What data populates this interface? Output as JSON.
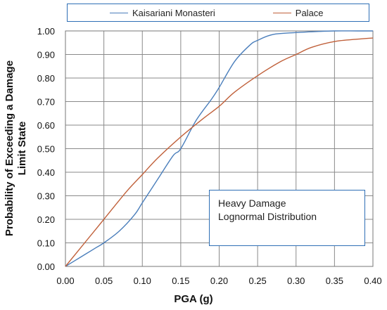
{
  "chart_data": {
    "type": "line",
    "title": "",
    "xlabel": "PGA (g)",
    "ylabel": "Probability of Exceeding a Damage Limit State",
    "ylabel_lines": [
      "Probability of Exceeding a Damage",
      "Limit State"
    ],
    "xlim": [
      0,
      0.4
    ],
    "ylim": [
      0,
      1.0
    ],
    "xticks": [
      "0.00",
      "0.05",
      "0.10",
      "0.15",
      "0.20",
      "0.25",
      "0.30",
      "0.35",
      "0.40"
    ],
    "yticks": [
      "0.00",
      "0.10",
      "0.20",
      "0.30",
      "0.40",
      "0.50",
      "0.60",
      "0.70",
      "0.80",
      "0.90",
      "1.00"
    ],
    "grid": true,
    "legend_position": "top",
    "annotation": [
      "Heavy Damage",
      "Lognormal Distribution"
    ],
    "series": [
      {
        "name": "Kaisariani Monasteri",
        "color": "#4a7ebb",
        "x": [
          0,
          0.02,
          0.04,
          0.05,
          0.07,
          0.09,
          0.1,
          0.12,
          0.14,
          0.15,
          0.17,
          0.19,
          0.2,
          0.22,
          0.24,
          0.25,
          0.27,
          0.3,
          0.33,
          0.35,
          0.38,
          0.4
        ],
        "y": [
          0,
          0.04,
          0.08,
          0.1,
          0.15,
          0.22,
          0.27,
          0.37,
          0.47,
          0.5,
          0.62,
          0.71,
          0.76,
          0.87,
          0.94,
          0.96,
          0.985,
          0.993,
          0.998,
          1.0,
          1.0,
          1.0
        ]
      },
      {
        "name": "Palace",
        "color": "#c0603a",
        "x": [
          0,
          0.02,
          0.05,
          0.08,
          0.1,
          0.12,
          0.15,
          0.18,
          0.2,
          0.22,
          0.25,
          0.28,
          0.3,
          0.32,
          0.35,
          0.38,
          0.4
        ],
        "y": [
          0,
          0.08,
          0.2,
          0.32,
          0.39,
          0.46,
          0.55,
          0.63,
          0.68,
          0.74,
          0.81,
          0.87,
          0.9,
          0.93,
          0.955,
          0.965,
          0.97
        ]
      }
    ]
  }
}
